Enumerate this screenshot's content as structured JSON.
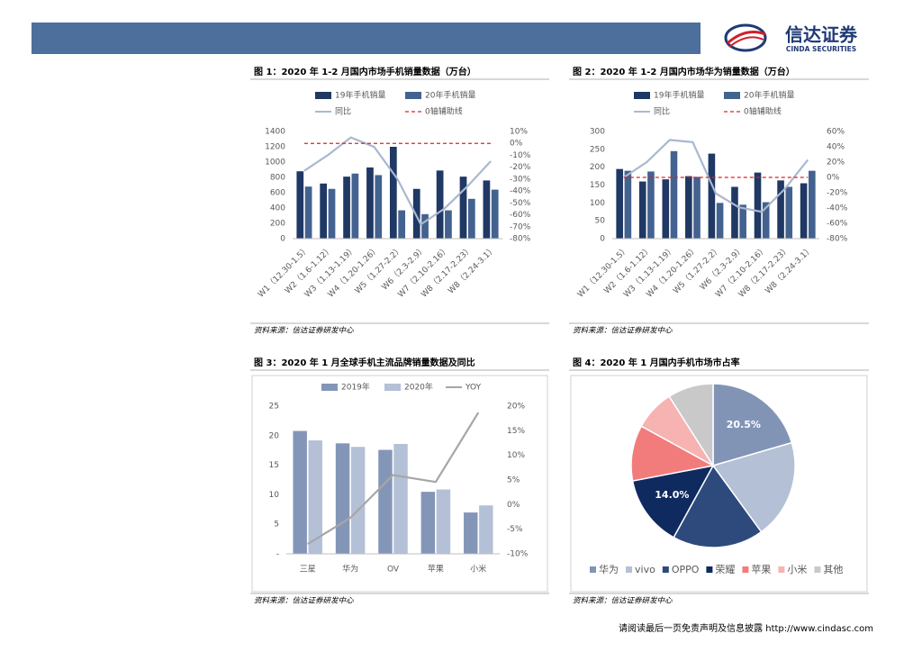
{
  "header": {
    "logo": "信达证券",
    "logo_en": "CINDA SECURITIES"
  },
  "footer": "请阅读最后一页免责声明及信息披露 http://www.cindasc.com",
  "chart_data": [
    {
      "type": "bar",
      "title": "图 1：2020 年 1-2 月国内市场手机销量数据（万台）",
      "source": "资料来源：信达证券研发中心",
      "categories": [
        "W1（12.30-1.5）",
        "W2（1.6-1.12）",
        "W3（1.13-1.19）",
        "W4（1.20-1.26）",
        "W5（1.27-2.2）",
        "W6（2.3-2.9）",
        "W7（2.10-2.16）",
        "W8（2.17-2.23）",
        "W8（2.24-3.1）"
      ],
      "series": [
        {
          "name": "19年手机销量",
          "type": "bar",
          "color": "#1f3864",
          "values": [
            880,
            720,
            810,
            930,
            1200,
            650,
            890,
            810,
            760
          ]
        },
        {
          "name": "20年手机销量",
          "type": "bar",
          "color": "#44628f",
          "values": [
            680,
            650,
            850,
            830,
            370,
            320,
            370,
            520,
            640
          ]
        },
        {
          "name": "同比",
          "type": "line",
          "axis": "y2",
          "color": "#a9b8cf",
          "values": [
            -23,
            -10,
            5,
            -3,
            -30,
            -68,
            -55,
            -36,
            -15
          ]
        },
        {
          "name": "0轴辅助线",
          "type": "line",
          "axis": "y2",
          "color": "#e02020",
          "dash": true,
          "values": [
            0,
            0,
            0,
            0,
            0,
            0,
            0,
            0,
            0
          ]
        }
      ],
      "ylim": [
        0,
        1400
      ],
      "yticks": [
        0,
        200,
        400,
        600,
        800,
        1000,
        1200,
        1400
      ],
      "y2lim": [
        -80,
        10
      ],
      "y2ticks": [
        {
          "value": -80,
          "label": "-80%"
        },
        {
          "value": -70,
          "label": "-70%"
        },
        {
          "value": -60,
          "label": "-60%"
        },
        {
          "value": -50,
          "label": "-50%"
        },
        {
          "value": -40,
          "label": "-40%"
        },
        {
          "value": -30,
          "label": "-30%"
        },
        {
          "value": -20,
          "label": "-20%"
        },
        {
          "value": -10,
          "label": "-10%"
        },
        {
          "value": 0,
          "label": "0%"
        },
        {
          "value": 10,
          "label": "10%"
        }
      ]
    },
    {
      "type": "bar",
      "title": "图 2：2020 年 1-2 月国内市场华为销量数据（万台）",
      "source": "资料来源：信达证券研发中心",
      "categories": [
        "W1（12.30-1.5）",
        "W2（1.6-1.12）",
        "W3（1.13-1.19）",
        "W4（1.20-1.26）",
        "W5（1.27-2.2）",
        "W6（2.3-2.9）",
        "W7（2.10-2.16）",
        "W8（2.17-2.23）",
        "W8（2.24-3.1）"
      ],
      "series": [
        {
          "name": "19年手机销量",
          "type": "bar",
          "color": "#1f3864",
          "values": [
            195,
            160,
            166,
            175,
            238,
            145,
            185,
            163,
            155
          ]
        },
        {
          "name": "20年手机销量",
          "type": "bar",
          "color": "#44628f",
          "values": [
            190,
            188,
            245,
            173,
            100,
            95,
            102,
            145,
            190
          ]
        },
        {
          "name": "同比",
          "type": "line",
          "axis": "y2",
          "color": "#a9b8cf",
          "values": [
            0,
            20,
            49,
            46,
            -21,
            -39,
            -45,
            -15,
            23
          ]
        },
        {
          "name": "0轴辅助线",
          "type": "line",
          "axis": "y2",
          "color": "#e02020",
          "dash": true,
          "values": [
            0,
            0,
            0,
            0,
            0,
            0,
            0,
            0,
            0
          ]
        }
      ],
      "ylim": [
        0,
        300
      ],
      "yticks": [
        0,
        50,
        100,
        150,
        200,
        250,
        300
      ],
      "y2lim": [
        -80,
        60
      ],
      "y2ticks": [
        {
          "value": -80,
          "label": "-80%"
        },
        {
          "value": -60,
          "label": "-60%"
        },
        {
          "value": -40,
          "label": "-40%"
        },
        {
          "value": -20,
          "label": "-20%"
        },
        {
          "value": 0,
          "label": "0%"
        },
        {
          "value": 20,
          "label": "20%"
        },
        {
          "value": 40,
          "label": "40%"
        },
        {
          "value": 60,
          "label": "60%"
        }
      ]
    },
    {
      "type": "bar",
      "title": "图 3：2020 年 1 月全球手机主流品牌销量数据及同比",
      "source": "资料来源：信达证券研发中心",
      "categories": [
        "三星",
        "华为",
        "OV",
        "苹果",
        "小米"
      ],
      "series": [
        {
          "name": "2019年",
          "type": "bar",
          "color": "#8496b8",
          "values": [
            20.8,
            18.7,
            17.6,
            10.5,
            7.0
          ]
        },
        {
          "name": "2020年",
          "type": "bar",
          "color": "#b4c0d6",
          "values": [
            19.2,
            18.1,
            18.6,
            10.9,
            8.2
          ]
        },
        {
          "name": "YOY",
          "type": "line",
          "axis": "y2",
          "color": "#a6a6a6",
          "values": [
            -8,
            -2.7,
            6,
            4.6,
            18.7
          ]
        }
      ],
      "ylim": [
        0,
        25
      ],
      "yticks": [
        {
          "value": 0,
          "label": "-"
        },
        5,
        10,
        15,
        20,
        25
      ],
      "y2lim": [
        -10,
        20
      ],
      "y2ticks": [
        {
          "value": -10,
          "label": "-10%"
        },
        {
          "value": -5,
          "label": "-5%"
        },
        {
          "value": 0,
          "label": "0%"
        },
        {
          "value": 5,
          "label": "5%"
        },
        {
          "value": 10,
          "label": "10%"
        },
        {
          "value": 15,
          "label": "15%"
        },
        {
          "value": 20,
          "label": "20%"
        }
      ]
    },
    {
      "type": "pie",
      "title": "图 4：2020 年 1 月国内手机市场市占率",
      "source": "资料来源：信达证券研发中心",
      "categories": [
        "华为",
        "vivo",
        "OPPO",
        "荣耀",
        "苹果",
        "小米",
        "其他"
      ],
      "values": [
        20.5,
        19.5,
        18,
        14.0,
        11,
        8,
        9
      ],
      "value_labels": [
        "20.5%",
        null,
        null,
        "14.0%",
        null,
        null,
        null
      ],
      "colors": [
        "#8294b6",
        "#b4c0d5",
        "#2e4a7d",
        "#0f2a5f",
        "#f27c7c",
        "#f7b2b2",
        "#c9c9c9"
      ]
    }
  ]
}
